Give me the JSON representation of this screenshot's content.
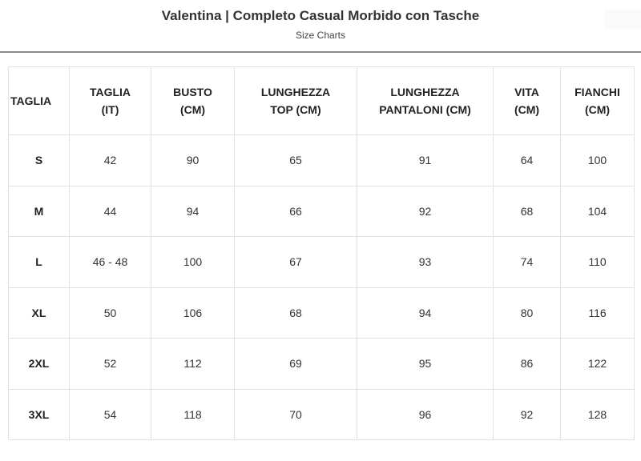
{
  "header": {
    "title": "Valentina | Completo Casual Morbido con Tasche",
    "subtitle": "Size Charts"
  },
  "table": {
    "columns": [
      [
        "TAGLIA"
      ],
      [
        "TAGLIA",
        "(IT)"
      ],
      [
        "BUSTO",
        "(CM)"
      ],
      [
        "LUNGHEZZA",
        "TOP (CM)"
      ],
      [
        "LUNGHEZZA",
        "PANTALONI (CM)"
      ],
      [
        "VITA",
        "(CM)"
      ],
      [
        "FIANCHI",
        "(CM)"
      ]
    ],
    "rows": [
      [
        "S",
        "42",
        "90",
        "65",
        "91",
        "64",
        "100"
      ],
      [
        "M",
        "44",
        "94",
        "66",
        "92",
        "68",
        "104"
      ],
      [
        "L",
        "46 - 48",
        "100",
        "67",
        "93",
        "74",
        "110"
      ],
      [
        "XL",
        "50",
        "106",
        "68",
        "94",
        "80",
        "116"
      ],
      [
        "2XL",
        "52",
        "112",
        "69",
        "95",
        "86",
        "122"
      ],
      [
        "3XL",
        "54",
        "118",
        "70",
        "96",
        "92",
        "128"
      ]
    ]
  }
}
